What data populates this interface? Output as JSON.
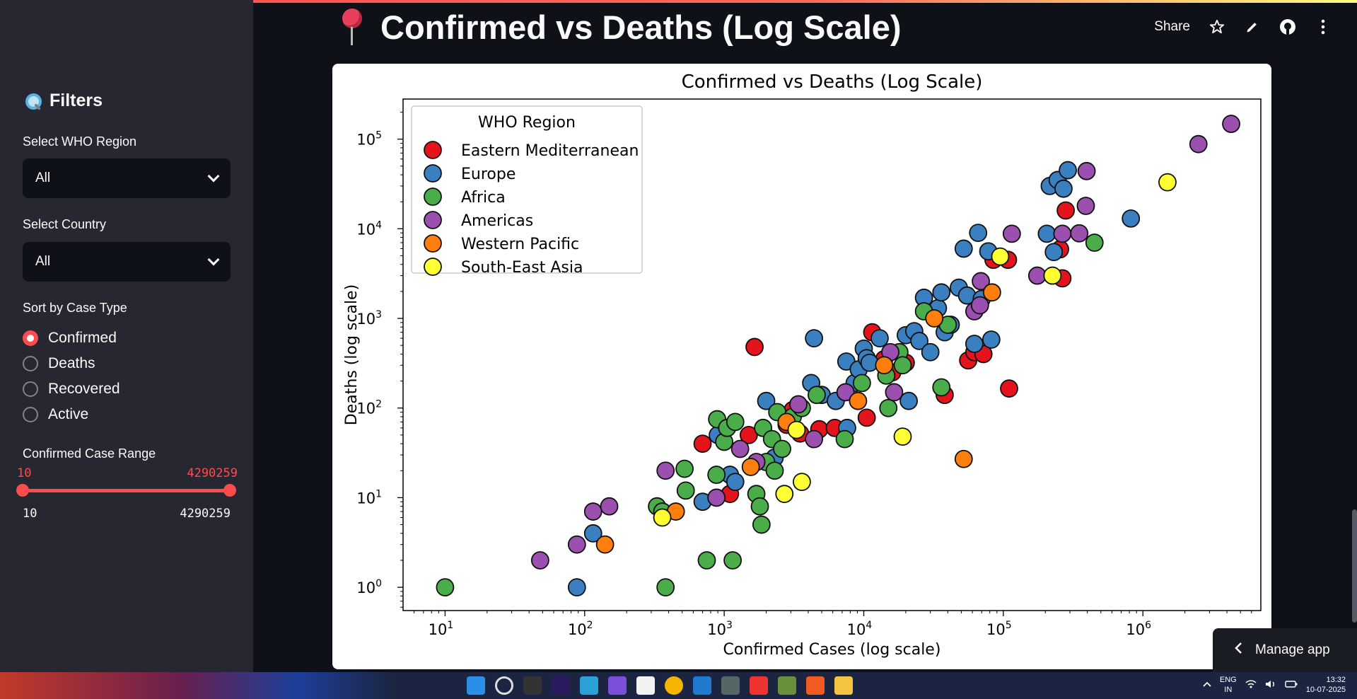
{
  "sidebar": {
    "filters_title": "Filters",
    "region_label": "Select WHO Region",
    "region_value": "All",
    "country_label": "Select Country",
    "country_value": "All",
    "sort_label": "Sort by Case Type",
    "sort_options": [
      "Confirmed",
      "Deaths",
      "Recovered",
      "Active"
    ],
    "sort_selected": "Confirmed",
    "range_label": "Confirmed Case Range",
    "range_min": "10",
    "range_max": "4290259",
    "range_low_value": "10",
    "range_high_value": "4290259"
  },
  "header": {
    "title": "Confirmed vs Deaths (Log Scale)",
    "share_label": "Share"
  },
  "manage_app_label": "Manage app",
  "taskbar": {
    "lang_top": "ENG",
    "lang_bottom": "IN",
    "time": "13:32",
    "date": "10-07-2025"
  },
  "colors": {
    "Eastern Mediterranean": "#e4131c",
    "Europe": "#3a7fc0",
    "Africa": "#4aad4a",
    "Americas": "#9b4fae",
    "Western Pacific": "#ff7f0e",
    "South-East Asia": "#ffff33"
  },
  "chart_data": {
    "type": "scatter",
    "title": "Confirmed vs Deaths (Log Scale)",
    "xlabel": "Confirmed Cases (log scale)",
    "ylabel": "Deaths (log scale)",
    "xscale": "log",
    "yscale": "log",
    "xlim": [
      5,
      7000000
    ],
    "ylim": [
      0.55,
      280000
    ],
    "xticks": [
      10,
      100,
      1000,
      10000,
      100000,
      1000000
    ],
    "yticks": [
      1,
      10,
      100,
      1000,
      10000,
      100000
    ],
    "grid": false,
    "legend_title": "WHO Region",
    "legend_placement": "top-left",
    "series": [
      {
        "name": "Eastern Mediterranean",
        "points": [
          [
            700,
            40
          ],
          [
            1100,
            11
          ],
          [
            1650,
            480
          ],
          [
            1500,
            50
          ],
          [
            2800,
            65
          ],
          [
            3100,
            95
          ],
          [
            3500,
            52
          ],
          [
            4800,
            58
          ],
          [
            6200,
            60
          ],
          [
            10500,
            78
          ],
          [
            11500,
            700
          ],
          [
            14000,
            350
          ],
          [
            16000,
            250
          ],
          [
            20000,
            320
          ],
          [
            38000,
            140
          ],
          [
            56000,
            340
          ],
          [
            62000,
            420
          ],
          [
            72000,
            400
          ],
          [
            85000,
            4500
          ],
          [
            108000,
            4500
          ],
          [
            110000,
            165
          ],
          [
            255000,
            5900
          ],
          [
            265000,
            2800
          ],
          [
            280000,
            16000
          ]
        ]
      },
      {
        "name": "Europe",
        "points": [
          [
            88,
            1
          ],
          [
            115,
            4
          ],
          [
            700,
            9
          ],
          [
            900,
            50
          ],
          [
            1100,
            18
          ],
          [
            1200,
            15
          ],
          [
            2000,
            120
          ],
          [
            2300,
            28
          ],
          [
            3400,
            110
          ],
          [
            4200,
            190
          ],
          [
            4400,
            600
          ],
          [
            5000,
            140
          ],
          [
            6300,
            120
          ],
          [
            7500,
            330
          ],
          [
            7600,
            60
          ],
          [
            8600,
            190
          ],
          [
            9200,
            270
          ],
          [
            10000,
            460
          ],
          [
            10500,
            360
          ],
          [
            11000,
            320
          ],
          [
            13000,
            600
          ],
          [
            20000,
            650
          ],
          [
            21000,
            120
          ],
          [
            23000,
            720
          ],
          [
            25000,
            560
          ],
          [
            27000,
            1700
          ],
          [
            30000,
            420
          ],
          [
            34000,
            1300
          ],
          [
            36000,
            1950
          ],
          [
            38000,
            700
          ],
          [
            42000,
            850
          ],
          [
            48000,
            2200
          ],
          [
            52000,
            6000
          ],
          [
            55000,
            1800
          ],
          [
            62000,
            520
          ],
          [
            66000,
            9000
          ],
          [
            70000,
            1650
          ],
          [
            78000,
            5600
          ],
          [
            82000,
            580
          ],
          [
            205000,
            8800
          ],
          [
            215000,
            30000
          ],
          [
            230000,
            5500
          ],
          [
            245000,
            35000
          ],
          [
            270000,
            28000
          ],
          [
            290000,
            45000
          ],
          [
            820000,
            13000
          ]
        ]
      },
      {
        "name": "Africa",
        "points": [
          [
            10,
            1
          ],
          [
            330,
            8
          ],
          [
            360,
            7
          ],
          [
            380,
            1
          ],
          [
            520,
            21
          ],
          [
            530,
            12
          ],
          [
            750,
            2
          ],
          [
            880,
            18
          ],
          [
            890,
            75
          ],
          [
            1000,
            42
          ],
          [
            1050,
            60
          ],
          [
            1150,
            2
          ],
          [
            1200,
            70
          ],
          [
            1700,
            11
          ],
          [
            1800,
            8
          ],
          [
            1850,
            5
          ],
          [
            1900,
            60
          ],
          [
            2000,
            25
          ],
          [
            2200,
            45
          ],
          [
            2300,
            20
          ],
          [
            2400,
            90
          ],
          [
            2600,
            35
          ],
          [
            3100,
            80
          ],
          [
            3600,
            100
          ],
          [
            4600,
            140
          ],
          [
            7300,
            45
          ],
          [
            9700,
            190
          ],
          [
            14500,
            230
          ],
          [
            15000,
            100
          ],
          [
            18000,
            420
          ],
          [
            19000,
            300
          ],
          [
            27000,
            1200
          ],
          [
            36000,
            170
          ],
          [
            40000,
            850
          ],
          [
            450000,
            7000
          ]
        ]
      },
      {
        "name": "Americas",
        "points": [
          [
            48,
            2
          ],
          [
            88,
            3
          ],
          [
            115,
            7
          ],
          [
            150,
            8
          ],
          [
            380,
            20
          ],
          [
            880,
            10
          ],
          [
            1300,
            35
          ],
          [
            1700,
            25
          ],
          [
            3400,
            110
          ],
          [
            4400,
            45
          ],
          [
            7400,
            150
          ],
          [
            15500,
            420
          ],
          [
            16500,
            150
          ],
          [
            62000,
            1200
          ],
          [
            68000,
            1400
          ],
          [
            69000,
            2600
          ],
          [
            115000,
            8800
          ],
          [
            175000,
            3000
          ],
          [
            265000,
            8800
          ],
          [
            350000,
            8900
          ],
          [
            390000,
            18000
          ],
          [
            395000,
            44000
          ],
          [
            2500000,
            88000
          ],
          [
            4290259,
            148000
          ]
        ]
      },
      {
        "name": "Western Pacific",
        "points": [
          [
            140,
            3
          ],
          [
            450,
            7
          ],
          [
            1550,
            22
          ],
          [
            2800,
            70
          ],
          [
            9100,
            120
          ],
          [
            14000,
            300
          ],
          [
            32000,
            1000
          ],
          [
            52000,
            27
          ],
          [
            83000,
            1950
          ]
        ]
      },
      {
        "name": "South-East Asia",
        "points": [
          [
            360,
            6
          ],
          [
            2700,
            11
          ],
          [
            3300,
            57
          ],
          [
            3600,
            15
          ],
          [
            19000,
            48
          ],
          [
            95000,
            4900
          ],
          [
            225000,
            3000
          ],
          [
            1500000,
            33000
          ]
        ]
      }
    ]
  }
}
